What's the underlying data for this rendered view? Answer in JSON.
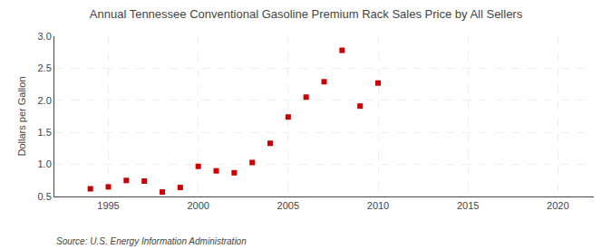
{
  "chart_data": {
    "type": "scatter",
    "title": "Annual Tennessee Conventional Gasoline Premium Rack Sales Price by All Sellers",
    "ylabel": "Dollars per Gallon",
    "annotations": [
      "Source: U.S. Energy Information Administration"
    ],
    "x": [
      1994,
      1995,
      1996,
      1997,
      1998,
      1999,
      2000,
      2001,
      2002,
      2003,
      2004,
      2005,
      2006,
      2007,
      2008,
      2009,
      2010
    ],
    "values": [
      0.62,
      0.65,
      0.75,
      0.74,
      0.57,
      0.64,
      0.97,
      0.9,
      0.87,
      1.03,
      1.33,
      1.74,
      2.05,
      2.29,
      2.78,
      1.91,
      2.27
    ],
    "color": "#cc0000",
    "marker": "square",
    "xlim": [
      1992,
      2022
    ],
    "ylim": [
      0.5,
      3.0
    ],
    "xticks": [
      1995,
      2000,
      2005,
      2010,
      2015,
      2020
    ],
    "yticks": [
      0.5,
      {
        "value": 1.0,
        "label": "1.0"
      },
      1.5,
      {
        "value": 2.0,
        "label": "2.0"
      },
      2.5,
      {
        "value": 3.0,
        "label": "3.0"
      }
    ],
    "grid": true
  }
}
